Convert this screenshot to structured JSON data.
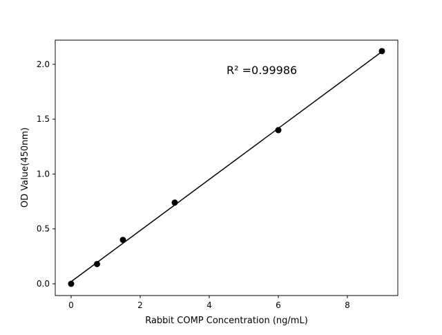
{
  "chart_data": {
    "type": "scatter",
    "title": "",
    "xlabel": "Rabbit COMP Concentration (ng/mL)",
    "ylabel": "OD Value(450nm)",
    "xlim": [
      -0.46,
      9.46
    ],
    "ylim": [
      -0.107,
      2.22
    ],
    "xticks": [
      0,
      2,
      4,
      6,
      8
    ],
    "xtick_labels": [
      "0",
      "2",
      "4",
      "6",
      "8"
    ],
    "yticks": [
      0.0,
      0.5,
      1.0,
      1.5,
      2.0
    ],
    "ytick_labels": [
      "0.0",
      "0.5",
      "1.0",
      "1.5",
      "2.0"
    ],
    "grid": false,
    "series": [
      {
        "x": [
          0,
          0.75,
          1.5,
          3,
          6,
          9
        ],
        "y": [
          0.0,
          0.18,
          0.4,
          0.74,
          1.4,
          2.12
        ],
        "color": "#000000",
        "marker": "circle"
      }
    ],
    "fit_line": {
      "x": [
        0,
        9
      ],
      "y": [
        0.02,
        2.115
      ],
      "color": "#000000"
    },
    "annotation": {
      "text": "R² =0.99986",
      "x": 4.5,
      "y": 1.91
    }
  }
}
